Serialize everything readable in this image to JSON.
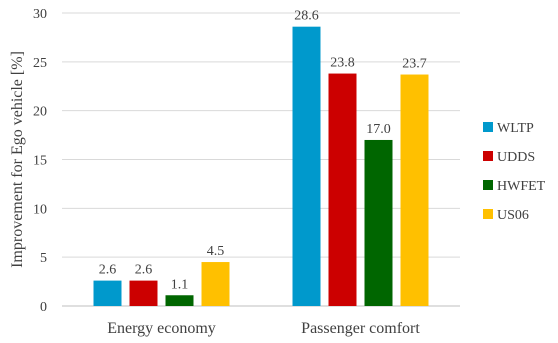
{
  "chart_data": {
    "type": "bar",
    "categories": [
      "Energy economy",
      "Passenger comfort"
    ],
    "series": [
      {
        "name": "WLTP",
        "color": "#0099cc",
        "values": [
          2.6,
          28.6
        ],
        "labels": [
          "2.6",
          "28.6"
        ]
      },
      {
        "name": "UDDS",
        "color": "#cc0000",
        "values": [
          2.6,
          23.8
        ],
        "labels": [
          "2.6",
          "23.8"
        ]
      },
      {
        "name": "HWFET",
        "color": "#006600",
        "values": [
          1.1,
          17.0
        ],
        "labels": [
          "1.1",
          "17.0"
        ]
      },
      {
        "name": "US06",
        "color": "#ffc000",
        "values": [
          4.5,
          23.7
        ],
        "labels": [
          "4.5",
          "23.7"
        ]
      }
    ],
    "title": "",
    "xlabel": "",
    "ylabel": "Improvement for Ego vehicle [%]",
    "ylim": [
      0,
      30
    ],
    "yticks": [
      0,
      5,
      10,
      15,
      20,
      25,
      30
    ],
    "grid": true,
    "legend_position": "right"
  }
}
